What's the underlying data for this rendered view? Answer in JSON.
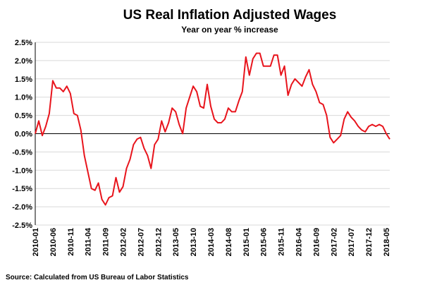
{
  "chart_data": {
    "type": "line",
    "title": "US Real Inflation Adjusted Wages",
    "subtitle": "Year on year % increase",
    "source": "Source: Calculated from US Bureau of Labor Statistics",
    "ylim": [
      -2.5,
      2.5
    ],
    "y_ticks": [
      "-2.5%",
      "-2.0%",
      "-1.5%",
      "-1.0%",
      "-0.5%",
      "0.0%",
      "0.5%",
      "1.0%",
      "1.5%",
      "2.0%",
      "2.5%"
    ],
    "x_tick_labels": [
      "2010-01",
      "2010-06",
      "2010-11",
      "2011-04",
      "2011-09",
      "2012-02",
      "2012-07",
      "2012-12",
      "2013-05",
      "2013-10",
      "2014-03",
      "2014-08",
      "2015-01",
      "2015-06",
      "2015-11",
      "2016-04",
      "2016-09",
      "2017-02",
      "2017-07",
      "2017-12",
      "2018-05"
    ],
    "grid": true,
    "line_color": "#e8141c",
    "series": [
      {
        "start": "2010-01",
        "values": [
          0.0,
          0.35,
          -0.05,
          0.2,
          0.55,
          1.45,
          1.25,
          1.25,
          1.15,
          1.3,
          1.1,
          0.55,
          0.5,
          0.1,
          -0.6,
          -1.05,
          -1.5,
          -1.55,
          -1.35,
          -1.8,
          -1.95,
          -1.75,
          -1.7,
          -1.2,
          -1.6,
          -1.45,
          -0.95,
          -0.7,
          -0.3,
          -0.15,
          -0.1,
          -0.4,
          -0.6,
          -0.95,
          -0.3,
          -0.15,
          0.35,
          0.05,
          0.3,
          0.7,
          0.6,
          0.25,
          0.0,
          0.7,
          1.0,
          1.3,
          1.15,
          0.75,
          0.7,
          1.35,
          0.75,
          0.4,
          0.3,
          0.3,
          0.4,
          0.7,
          0.6,
          0.6,
          0.9,
          1.15,
          2.1,
          1.6,
          2.05,
          2.2,
          2.2,
          1.85,
          1.85,
          1.85,
          2.15,
          2.15,
          1.6,
          1.85,
          1.05,
          1.35,
          1.5,
          1.4,
          1.3,
          1.55,
          1.75,
          1.35,
          1.15,
          0.85,
          0.8,
          0.5,
          -0.1,
          -0.25,
          -0.15,
          -0.05,
          0.4,
          0.6,
          0.45,
          0.35,
          0.2,
          0.1,
          0.05,
          0.2,
          0.25,
          0.2,
          0.25,
          0.2,
          0.0,
          -0.15
        ]
      }
    ]
  }
}
